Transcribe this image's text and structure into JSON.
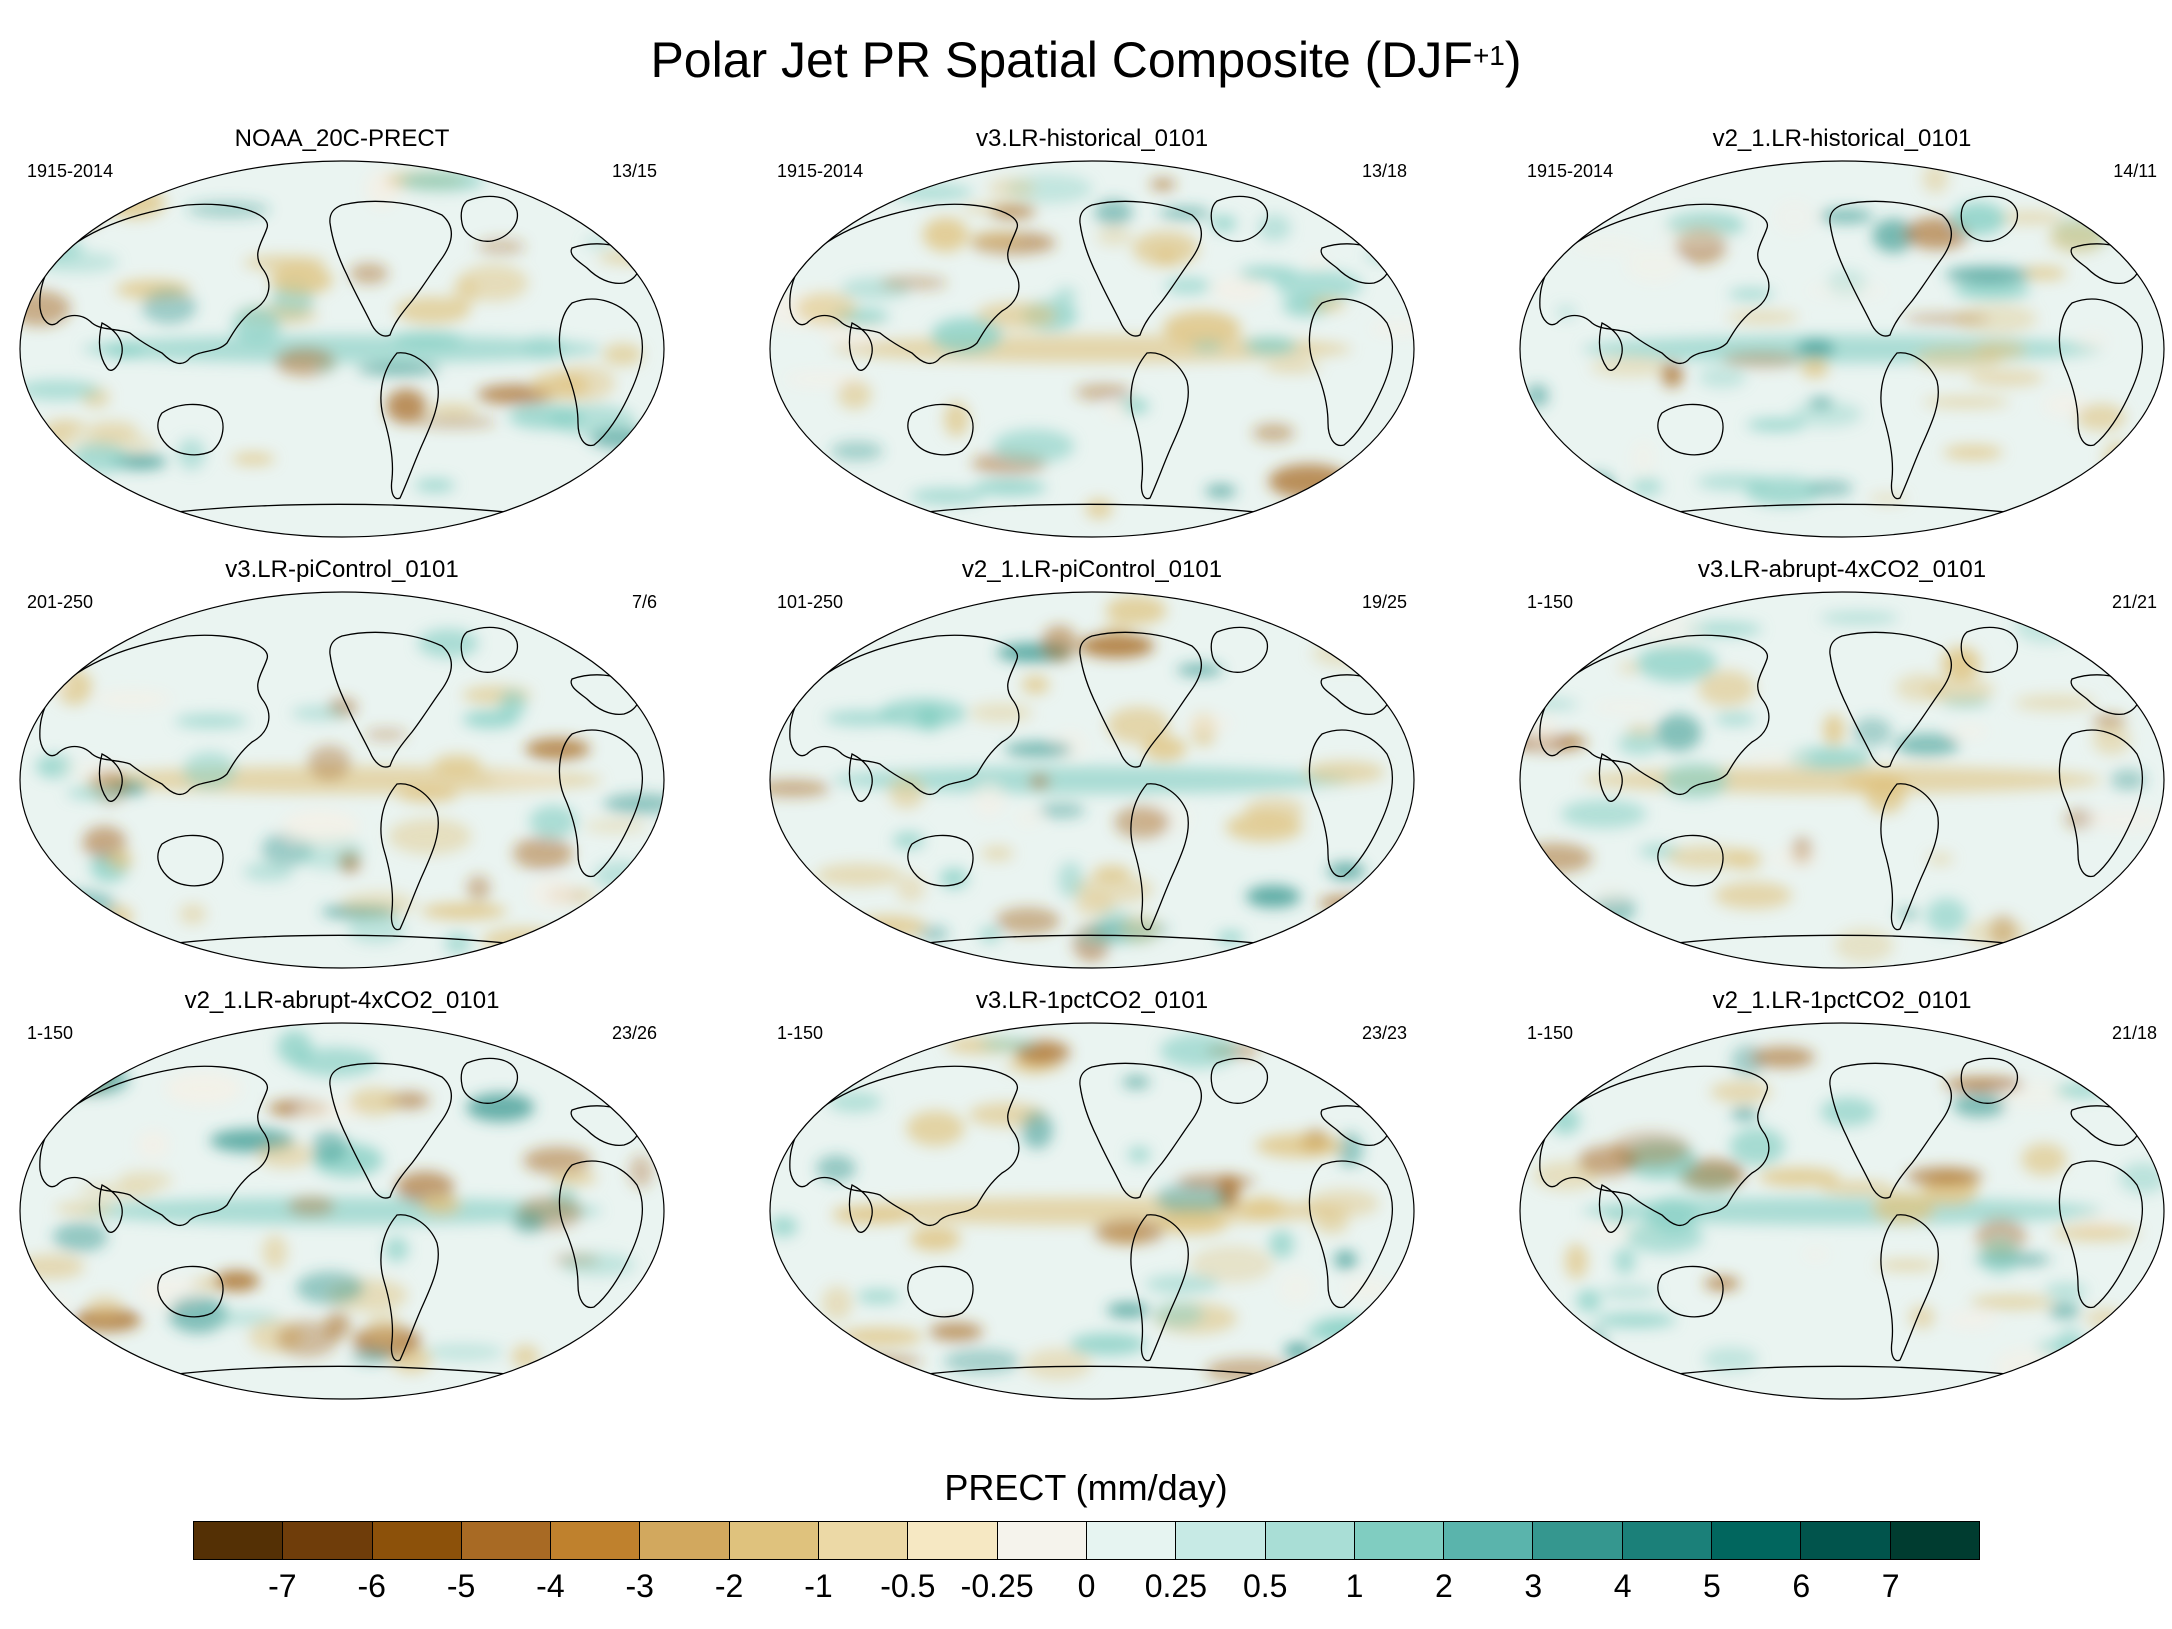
{
  "title": {
    "main": "Polar Jet PR Spatial Composite (DJF",
    "superscript": "+1",
    "close": ")"
  },
  "panels": [
    {
      "title": "NOAA_20C-PRECT",
      "left": "1915-2014",
      "right": "13/15"
    },
    {
      "title": "v3.LR-historical_0101",
      "left": "1915-2014",
      "right": "13/18"
    },
    {
      "title": "v2_1.LR-historical_0101",
      "left": "1915-2014",
      "right": "14/11"
    },
    {
      "title": "v3.LR-piControl_0101",
      "left": "201-250",
      "right": "7/6"
    },
    {
      "title": "v2_1.LR-piControl_0101",
      "left": "101-250",
      "right": "19/25"
    },
    {
      "title": "v3.LR-abrupt-4xCO2_0101",
      "left": "1-150",
      "right": "21/21"
    },
    {
      "title": "v2_1.LR-abrupt-4xCO2_0101",
      "left": "1-150",
      "right": "23/26"
    },
    {
      "title": "v3.LR-1pctCO2_0101",
      "left": "1-150",
      "right": "23/23"
    },
    {
      "title": "v2_1.LR-1pctCO2_0101",
      "left": "1-150",
      "right": "21/18"
    }
  ],
  "colorbar": {
    "title": "PRECT (mm/day)",
    "labels": [
      "-7",
      "-6",
      "-5",
      "-4",
      "-3",
      "-2",
      "-1",
      "-0.5",
      "-0.25",
      "0",
      "0.25",
      "0.5",
      "1",
      "2",
      "3",
      "4",
      "5",
      "6",
      "7"
    ],
    "colors": [
      "#543005",
      "#6f3d0a",
      "#8c510a",
      "#a86a24",
      "#bf812d",
      "#d2a85e",
      "#dfc27d",
      "#ecd9a6",
      "#f6e8c3",
      "#f5f3ec",
      "#e6f4f1",
      "#c7eae5",
      "#a9ded6",
      "#80cdc1",
      "#5ab4ac",
      "#35978f",
      "#1b8079",
      "#01665e",
      "#01544c",
      "#003c30"
    ]
  },
  "map_fill": {
    "ocean_base": "#eaf4f1",
    "land_base": "#f5f0e6",
    "wet": "#80cdc1",
    "wet_strong": "#35978f",
    "dry": "#dfc27d",
    "dry_strong": "#a86a24"
  }
}
